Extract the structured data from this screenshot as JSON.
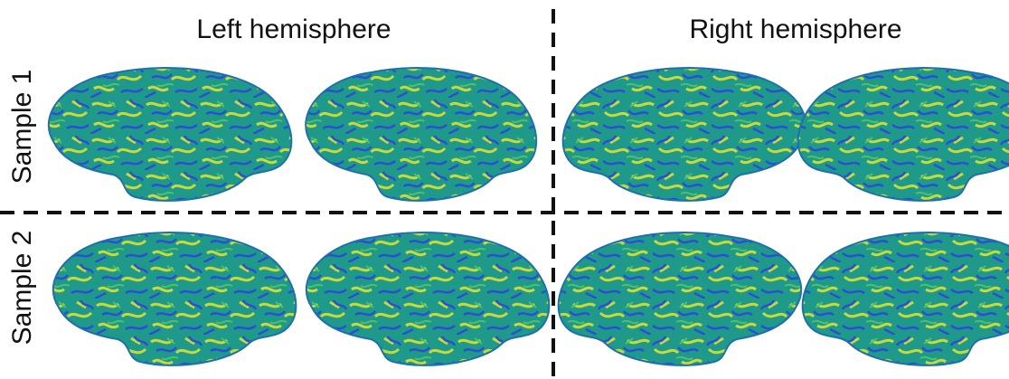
{
  "headers": {
    "left": "Left hemisphere",
    "right": "Right hemisphere"
  },
  "rows": [
    "Sample 1",
    "Sample 2"
  ]
}
